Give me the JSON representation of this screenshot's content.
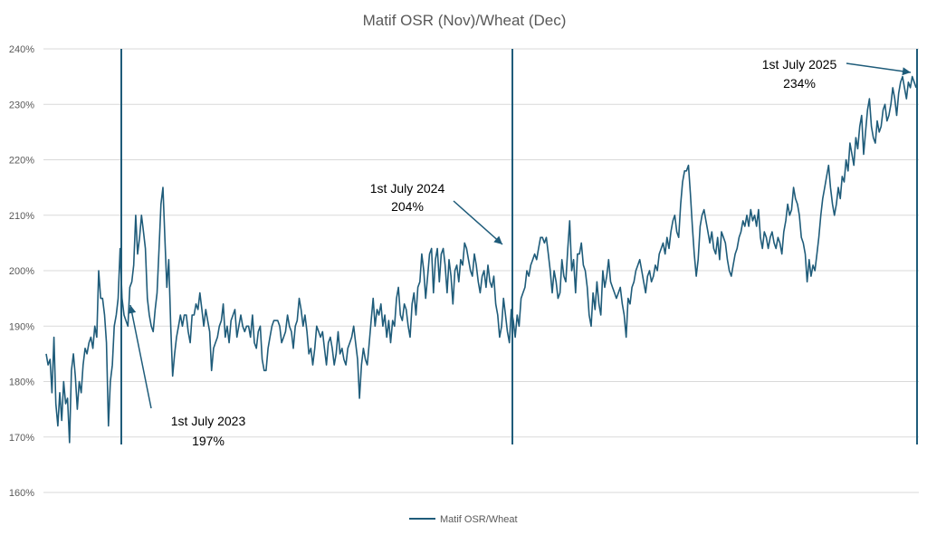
{
  "chart_data": {
    "type": "line",
    "title": "Matif OSR (Nov)/Wheat (Dec)",
    "xlabel": "",
    "ylabel": "",
    "ylim": [
      160,
      240
    ],
    "y_ticks": [
      160,
      170,
      180,
      190,
      200,
      210,
      220,
      230,
      240
    ],
    "y_tick_labels": [
      "160%",
      "170%",
      "180%",
      "190%",
      "200%",
      "210%",
      "220%",
      "230%",
      "240%"
    ],
    "grid": "horizontal",
    "legend_position": "bottom",
    "colors": {
      "series": "#1f5c7a",
      "grid": "#d9d9d9",
      "text": "#595959",
      "annotation": "#000000"
    },
    "series": [
      {
        "name": "Matif OSR/Wheat",
        "unit": "%",
        "values": [
          185,
          183,
          184,
          178,
          188,
          176,
          172,
          178,
          173,
          180,
          176,
          177,
          169,
          182,
          185,
          181,
          175,
          180,
          178,
          183,
          186,
          185,
          187,
          188,
          186,
          190,
          188,
          200,
          195,
          195,
          192,
          187,
          172,
          180,
          183,
          190,
          192,
          195,
          204,
          195,
          192,
          191,
          190,
          197,
          198,
          201,
          210,
          203,
          206,
          210,
          207,
          204,
          195,
          192,
          190,
          189,
          193,
          196,
          204,
          212,
          215,
          206,
          197,
          202,
          190,
          181,
          185,
          188,
          190,
          192,
          190,
          192,
          192,
          189,
          187,
          192,
          192,
          194,
          193,
          196,
          193,
          190,
          193,
          191,
          189,
          182,
          186,
          187,
          188,
          190,
          191,
          194,
          188,
          190,
          187,
          191,
          192,
          193,
          188,
          190,
          192,
          190,
          189,
          190,
          190,
          188,
          192,
          187,
          186,
          189,
          190,
          184,
          182,
          182,
          186,
          188,
          190,
          191,
          191,
          191,
          190,
          187,
          188,
          189,
          192,
          190,
          189,
          186,
          190,
          191,
          195,
          193,
          190,
          192,
          189,
          185,
          186,
          183,
          186,
          190,
          189,
          188,
          189,
          186,
          183,
          187,
          188,
          186,
          183,
          185,
          189,
          185,
          186,
          184,
          183,
          186,
          187,
          188,
          190,
          187,
          184,
          177,
          183,
          186,
          184,
          183,
          187,
          191,
          195,
          190,
          193,
          192,
          194,
          190,
          192,
          188,
          191,
          187,
          191,
          190,
          195,
          197,
          192,
          191,
          194,
          193,
          190,
          188,
          194,
          196,
          192,
          197,
          198,
          203,
          200,
          195,
          199,
          203,
          204,
          196,
          202,
          204,
          198,
          203,
          204,
          201,
          196,
          202,
          199,
          194,
          200,
          201,
          198,
          202,
          201,
          205,
          204,
          202,
          200,
          199,
          203,
          201,
          198,
          196,
          199,
          200,
          197,
          201,
          198,
          197,
          199,
          194,
          192,
          188,
          190,
          195,
          192,
          189,
          187,
          193,
          191,
          188,
          192,
          190,
          195,
          196,
          197,
          200,
          199,
          201,
          202,
          203,
          202,
          204,
          206,
          206,
          205,
          206,
          203,
          200,
          196,
          200,
          198,
          195,
          196,
          202,
          199,
          198,
          204,
          209,
          200,
          202,
          196,
          203,
          203,
          205,
          201,
          200,
          197,
          192,
          190,
          196,
          193,
          198,
          194,
          192,
          200,
          197,
          199,
          202,
          198,
          197,
          196,
          195,
          196,
          197,
          194,
          192,
          188,
          195,
          194,
          197,
          198,
          200,
          201,
          202,
          200,
          198,
          196,
          199,
          200,
          198,
          199,
          201,
          200,
          203,
          204,
          205,
          203,
          206,
          204,
          207,
          209,
          210,
          207,
          206,
          212,
          216,
          218,
          218,
          219,
          214,
          208,
          203,
          199,
          202,
          208,
          210,
          211,
          209,
          207,
          205,
          207,
          204,
          203,
          206,
          202,
          207,
          206,
          205,
          202,
          200,
          199,
          201,
          203,
          204,
          206,
          207,
          209,
          208,
          210,
          208,
          211,
          209,
          210,
          208,
          211,
          206,
          204,
          207,
          206,
          204,
          206,
          207,
          205,
          204,
          206,
          205,
          203,
          207,
          209,
          212,
          210,
          211,
          215,
          213,
          212,
          210,
          206,
          205,
          203,
          198,
          202,
          199,
          201,
          200,
          203,
          206,
          210,
          213,
          215,
          217,
          219,
          215,
          212,
          210,
          212,
          215,
          213,
          217,
          216,
          220,
          218,
          223,
          221,
          219,
          224,
          222,
          226,
          228,
          221,
          225,
          229,
          231,
          226,
          224,
          223,
          227,
          225,
          226,
          229,
          230,
          227,
          228,
          230,
          233,
          231,
          228,
          232,
          234,
          235,
          233,
          231,
          234,
          233,
          235,
          234,
          233
        ]
      }
    ],
    "annotations": [
      {
        "line1": "1st July 2023",
        "line2": "197%"
      },
      {
        "line1": "1st July 2024",
        "line2": "204%"
      },
      {
        "line1": "1st July 2025",
        "line2": "234%"
      }
    ]
  }
}
